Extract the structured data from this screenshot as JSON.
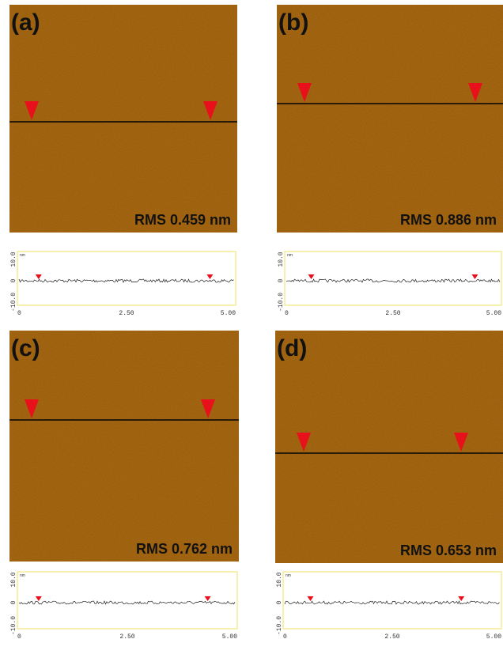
{
  "panels": [
    {
      "label": "(a)",
      "rms": "RMS 0.459 nm",
      "profile": {
        "unit": "nm",
        "yticks": [
          "10.0",
          "0",
          "-10.0"
        ],
        "xticks": [
          "0",
          "2.50",
          "5.00"
        ]
      }
    },
    {
      "label": "(b)",
      "rms": "RMS 0.886 nm",
      "profile": {
        "unit": "nm",
        "yticks": [
          "10.0",
          "0",
          "-10.0"
        ],
        "xticks": [
          "0",
          "2.50",
          "5.00"
        ]
      }
    },
    {
      "label": "(c)",
      "rms": "RMS 0.762 nm",
      "profile": {
        "unit": "nm",
        "yticks": [
          "10.0",
          "0",
          "-10.0"
        ],
        "xticks": [
          "0",
          "2.50",
          "5.00"
        ]
      }
    },
    {
      "label": "(d)",
      "rms": "RMS 0.653 nm",
      "profile": {
        "unit": "nm",
        "yticks": [
          "10.0",
          "0",
          "-10.0"
        ],
        "xticks": [
          "0",
          "2.50",
          "5.00"
        ]
      }
    }
  ]
}
